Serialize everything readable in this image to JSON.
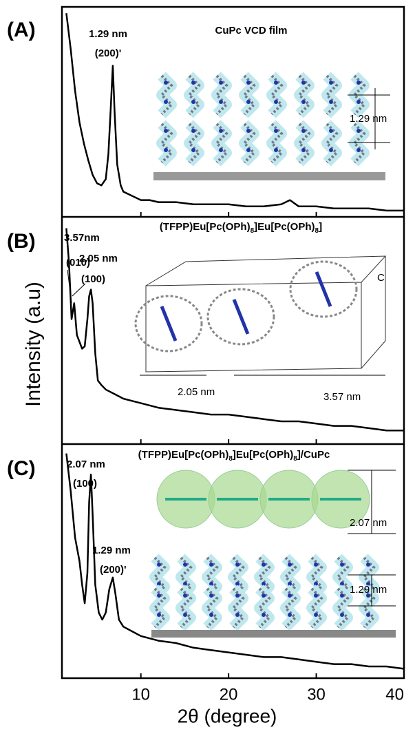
{
  "chart_data": [
    {
      "type": "line",
      "panel_label": "(A)",
      "title": [
        "CuPc VCD film"
      ],
      "annotations": [
        "1.29 nm",
        "(200)'"
      ],
      "inset_labels": [
        "1.29 nm"
      ],
      "color": "#000000",
      "xlim": [
        1,
        40
      ],
      "ylim": [
        0,
        100
      ],
      "x": [
        1.5,
        2,
        2.5,
        3,
        3.5,
        4,
        4.5,
        5,
        5.5,
        6,
        6.3,
        6.6,
        6.8,
        7,
        7.3,
        7.7,
        8,
        9,
        10,
        11,
        12,
        14,
        16,
        18,
        20,
        22,
        24,
        26,
        27,
        28,
        30,
        32,
        34,
        36,
        38,
        40
      ],
      "values": [
        97,
        80,
        60,
        45,
        35,
        27,
        20,
        16,
        15,
        18,
        30,
        55,
        72,
        50,
        25,
        15,
        12,
        10,
        8,
        8,
        7,
        7,
        6,
        6,
        6,
        5,
        5,
        6,
        8,
        5,
        5,
        4,
        4,
        4,
        3,
        3
      ]
    },
    {
      "type": "line",
      "panel_label": "(B)",
      "title": [
        "(TFPP)Eu[Pc(OPh)",
        "8",
        "]Eu[Pc(OPh)",
        "8",
        "]"
      ],
      "annotations": [
        "3.57nm",
        "(010)",
        "2.05 nm",
        "(100)"
      ],
      "inset_labels": [
        "2.05 nm",
        "3.57 nm",
        "C"
      ],
      "y_label": "Intensity (a.u)",
      "color": "#000000",
      "xlim": [
        1,
        40
      ],
      "ylim": [
        0,
        100
      ],
      "x": [
        1.5,
        1.8,
        2.1,
        2.4,
        2.7,
        3,
        3.3,
        3.6,
        3.9,
        4.1,
        4.3,
        4.5,
        4.8,
        5.1,
        5.5,
        6,
        7,
        8,
        9,
        10,
        12,
        14,
        16,
        18,
        20,
        22,
        24,
        26,
        28,
        30,
        32,
        34,
        36,
        38,
        40
      ],
      "values": [
        95,
        80,
        55,
        62,
        48,
        45,
        42,
        43,
        55,
        65,
        68,
        62,
        40,
        28,
        26,
        24,
        22,
        20,
        19,
        18,
        16,
        15,
        14,
        13,
        13,
        12,
        11,
        10,
        10,
        9,
        8,
        8,
        7,
        6,
        6
      ]
    },
    {
      "type": "line",
      "panel_label": "(C)",
      "title": [
        "(TFPP)Eu[Pc(OPh)",
        "8",
        "]Eu[Pc(OPh)",
        "8",
        "]/CuPc"
      ],
      "annotations": [
        "2.07 nm",
        "(100)",
        "1.29 nm",
        "(200)'"
      ],
      "inset_labels": [
        "2.07 nm",
        "1.29 nm"
      ],
      "x_label": "2θ  (degree)",
      "xticks": [
        10,
        20,
        30,
        40
      ],
      "color": "#000000",
      "xlim": [
        1,
        40
      ],
      "ylim": [
        0,
        100
      ],
      "x": [
        1.5,
        2,
        2.5,
        3,
        3.3,
        3.6,
        3.9,
        4.1,
        4.3,
        4.5,
        4.8,
        5.2,
        5.6,
        6,
        6.4,
        6.8,
        7.1,
        7.5,
        8,
        9,
        10,
        12,
        14,
        16,
        18,
        20,
        22,
        24,
        26,
        28,
        30,
        32,
        34,
        36,
        38,
        40
      ],
      "values": [
        96,
        80,
        60,
        50,
        40,
        32,
        45,
        75,
        87,
        70,
        40,
        28,
        25,
        28,
        38,
        43,
        36,
        25,
        22,
        20,
        18,
        16,
        15,
        13,
        12,
        11,
        10,
        9,
        9,
        8,
        7,
        6,
        6,
        5,
        5,
        4
      ]
    }
  ]
}
